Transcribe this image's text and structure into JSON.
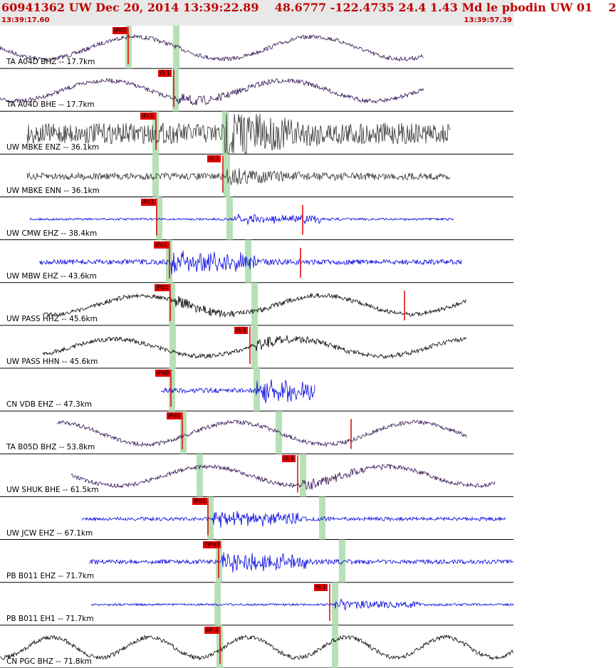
{
  "header": {
    "title": "60941362 UW Dec 20, 2014 13:39:22.89    48.6777 -122.4735 24.4 1.43 Md le pbodin UW 01    2",
    "start_time": "13:39:17.60",
    "end_time": "13:39:57.39"
  },
  "colors": {
    "title": "#c00000",
    "pick": "#e00000",
    "band": "#b8e0b8",
    "blue": "#0000e0",
    "purple": "#301050",
    "gray": "#333333",
    "black": "#000000"
  },
  "traces": [
    {
      "label": "TA A04D BHZ -- 17.7km",
      "pick": "iPd1",
      "color": "purple"
    },
    {
      "label": "TA A04D BHE -- 17.7km",
      "pick": "iS 1",
      "color": "purple"
    },
    {
      "label": "UW MBKE ENZ -- 36.1km",
      "pick": "iPc1",
      "color": "gray"
    },
    {
      "label": "UW MBKE ENN -- 36.1km",
      "pick": "iS 1",
      "color": "gray"
    },
    {
      "label": "UW CMW EHZ -- 38.4km",
      "pick": "iPc1",
      "color": "blue"
    },
    {
      "label": "UW MBW EHZ -- 43.6km",
      "pick": "iPc1",
      "color": "blue"
    },
    {
      "label": "UW PASS HHZ -- 45.6km",
      "pick": "iPd0",
      "color": "black"
    },
    {
      "label": "UW PASS HHN -- 45.6km",
      "pick": "iS 1",
      "color": "black"
    },
    {
      "label": "CN VDB EHZ -- 47.3km",
      "pick": "iPd0",
      "color": "blue"
    },
    {
      "label": "TA B05D BHZ -- 53.8km",
      "pick": "iPd0",
      "color": "purple"
    },
    {
      "label": "UW SHUK BHE -- 61.5km",
      "pick": "iS 1",
      "color": "purple"
    },
    {
      "label": "UW JCW EHZ -- 67.1km",
      "pick": "iPd1",
      "color": "blue"
    },
    {
      "label": "PB B011 EHZ -- 71.7km",
      "pick": "?iPd3",
      "color": "blue"
    },
    {
      "label": "PB B011 EH1 -- 71.7km",
      "pick": "iS 1",
      "color": "blue"
    },
    {
      "label": "CN PGC BHZ -- 71.8km",
      "pick": "eP 2",
      "color": "black"
    }
  ]
}
